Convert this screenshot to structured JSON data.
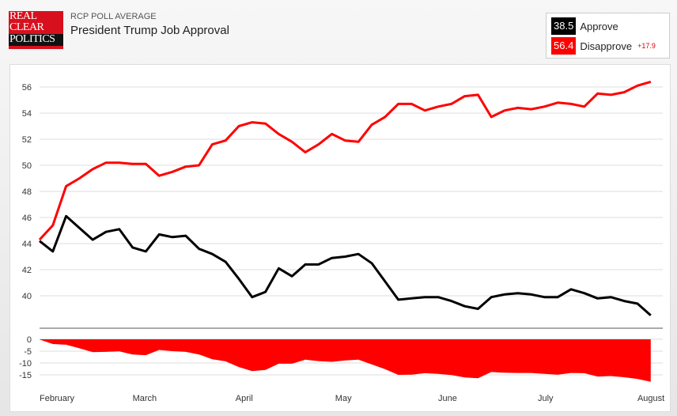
{
  "header": {
    "logo_text": [
      "REAL",
      "CLEAR",
      "POLITICS"
    ],
    "kicker": "RCP POLL AVERAGE",
    "title": "President Trump Job Approval"
  },
  "legend": {
    "approve_value": "38.5",
    "approve_label": "Approve",
    "disapprove_value": "56.4",
    "disapprove_label": "Disapprove",
    "spread": "+17.9",
    "approve_color": "#000000",
    "disapprove_color": "#ff0000"
  },
  "chart_data": [
    {
      "type": "line",
      "ylim": [
        38,
        57
      ],
      "yticks": [
        40,
        42,
        44,
        46,
        48,
        50,
        52,
        54,
        56
      ],
      "grid": true,
      "x": [
        "2017-02-01",
        "2017-02-05",
        "2017-02-09",
        "2017-02-13",
        "2017-02-17",
        "2017-02-21",
        "2017-02-25",
        "2017-03-01",
        "2017-03-05",
        "2017-03-09",
        "2017-03-13",
        "2017-03-17",
        "2017-03-21",
        "2017-03-25",
        "2017-03-29",
        "2017-04-02",
        "2017-04-06",
        "2017-04-10",
        "2017-04-14",
        "2017-04-18",
        "2017-04-22",
        "2017-04-26",
        "2017-04-30",
        "2017-05-04",
        "2017-05-08",
        "2017-05-12",
        "2017-05-16",
        "2017-05-20",
        "2017-05-24",
        "2017-05-28",
        "2017-06-01",
        "2017-06-05",
        "2017-06-09",
        "2017-06-13",
        "2017-06-17",
        "2017-06-21",
        "2017-06-25",
        "2017-06-29",
        "2017-07-03",
        "2017-07-07",
        "2017-07-11",
        "2017-07-15",
        "2017-07-19",
        "2017-07-23",
        "2017-07-27",
        "2017-07-31",
        "2017-08-04"
      ],
      "series": [
        {
          "name": "Approve",
          "color": "#000000",
          "values": [
            44.2,
            43.4,
            46.1,
            45.2,
            44.3,
            44.9,
            45.1,
            43.7,
            43.4,
            44.7,
            44.5,
            44.6,
            43.6,
            43.2,
            42.6,
            41.3,
            39.9,
            40.3,
            42.1,
            41.5,
            42.4,
            42.4,
            42.9,
            43.0,
            43.2,
            42.5,
            41.1,
            39.7,
            39.8,
            39.9,
            39.9,
            39.6,
            39.2,
            39.0,
            39.9,
            40.1,
            40.2,
            40.1,
            39.9,
            39.9,
            40.5,
            40.2,
            39.8,
            39.9,
            39.6,
            39.4,
            38.5
          ]
        },
        {
          "name": "Disapprove",
          "color": "#ff0000",
          "values": [
            44.3,
            45.4,
            48.4,
            49.0,
            49.7,
            50.2,
            50.2,
            50.1,
            50.1,
            49.2,
            49.5,
            49.9,
            50.0,
            51.6,
            51.9,
            53.0,
            53.3,
            53.2,
            52.4,
            51.8,
            51.0,
            51.6,
            52.4,
            51.9,
            51.8,
            53.1,
            53.7,
            54.7,
            54.7,
            54.2,
            54.5,
            54.7,
            55.3,
            55.4,
            53.7,
            54.2,
            54.4,
            54.3,
            54.5,
            54.8,
            54.7,
            54.5,
            55.5,
            55.4,
            55.6,
            56.1,
            56.4
          ]
        }
      ]
    },
    {
      "type": "area",
      "ylim": [
        -20,
        0
      ],
      "yticks": [
        0,
        -5,
        -10,
        -15
      ],
      "grid": true,
      "color": "#ff0000",
      "description_of_values": "Approve minus Disapprove spread",
      "xticklabels": [
        "February",
        "March",
        "April",
        "May",
        "June",
        "July",
        "August"
      ]
    }
  ]
}
